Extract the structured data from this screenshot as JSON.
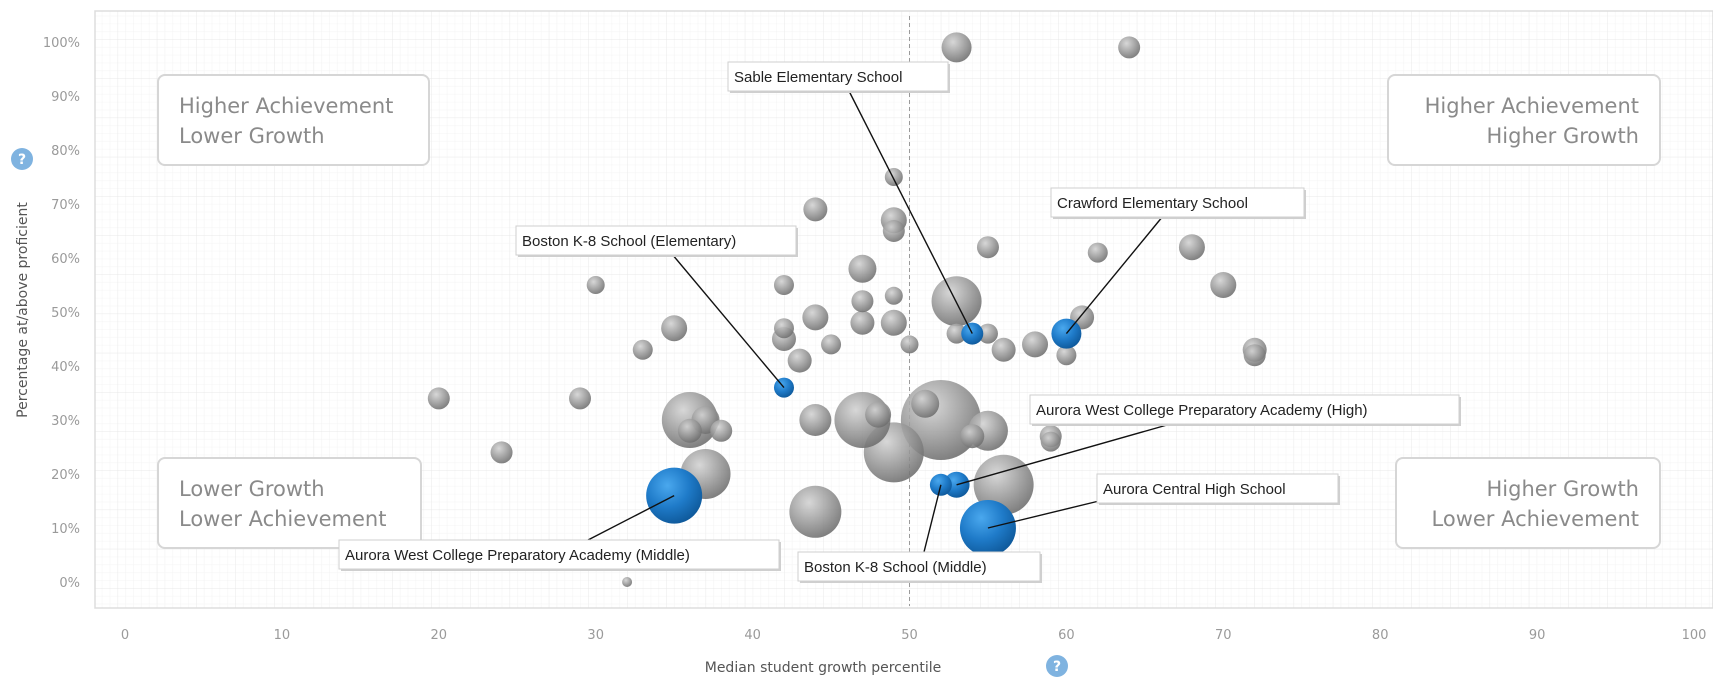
{
  "chart_data": {
    "type": "scatter",
    "title": "",
    "xlabel": "Median student growth percentile",
    "ylabel": "Percentage at/above proficient",
    "xlim": [
      0,
      100
    ],
    "ylim": [
      0,
      100
    ],
    "x_ticks": [
      0,
      10,
      20,
      30,
      40,
      50,
      60,
      70,
      80,
      90,
      100
    ],
    "y_ticks": [
      0,
      10,
      20,
      30,
      40,
      50,
      60,
      70,
      80,
      90,
      100
    ],
    "x_tick_labels": [
      "0",
      "10",
      "20",
      "30",
      "40",
      "50",
      "60",
      "70",
      "80",
      "90",
      "100"
    ],
    "y_tick_labels": [
      "0%",
      "10%",
      "20%",
      "30%",
      "40%",
      "50%",
      "60%",
      "70%",
      "80%",
      "90%",
      "100%"
    ],
    "reference_line_x": 50,
    "grid": true,
    "size_encoding": "bubble area",
    "colors": {
      "other_schools": "#8c8c8c",
      "highlighted": "#1f7bc9",
      "help_icon": "#7fb3e0",
      "panel_border": "#dddddd"
    },
    "quadrants": [
      {
        "position": "top-left",
        "line1": "Higher Achievement",
        "line2": "Lower Growth"
      },
      {
        "position": "top-right",
        "line1": "Higher Achievement",
        "line2": "Higher Growth"
      },
      {
        "position": "bottom-left",
        "line1": "Lower Growth",
        "line2": "Lower Achievement"
      },
      {
        "position": "bottom-right",
        "line1": "Higher Growth",
        "line2": "Lower Achievement"
      }
    ],
    "highlighted": [
      {
        "name": "Sable Elementary School",
        "x": 54,
        "y": 46,
        "size": 11
      },
      {
        "name": "Crawford Elementary School",
        "x": 60,
        "y": 46,
        "size": 15
      },
      {
        "name": "Boston K-8 School (Elementary)",
        "x": 42,
        "y": 36,
        "size": 10
      },
      {
        "name": "Aurora West College Preparatory Academy (High)",
        "x": 53,
        "y": 18,
        "size": 13
      },
      {
        "name": "Aurora Central High School",
        "x": 55,
        "y": 10,
        "size": 28
      },
      {
        "name": "Aurora West College Preparatory Academy (Middle)",
        "x": 35,
        "y": 16,
        "size": 28
      },
      {
        "name": "Boston K-8 School (Middle)",
        "x": 52,
        "y": 18,
        "size": 11
      }
    ],
    "other_schools": [
      {
        "x": 53,
        "y": 99,
        "size": 15
      },
      {
        "x": 64,
        "y": 99,
        "size": 11
      },
      {
        "x": 44,
        "y": 69,
        "size": 12
      },
      {
        "x": 49,
        "y": 75,
        "size": 9
      },
      {
        "x": 49,
        "y": 67,
        "size": 13
      },
      {
        "x": 49,
        "y": 65,
        "size": 11
      },
      {
        "x": 47,
        "y": 58,
        "size": 14
      },
      {
        "x": 55,
        "y": 62,
        "size": 11
      },
      {
        "x": 62,
        "y": 61,
        "size": 10
      },
      {
        "x": 68,
        "y": 62,
        "size": 13
      },
      {
        "x": 70,
        "y": 55,
        "size": 13
      },
      {
        "x": 42,
        "y": 55,
        "size": 10
      },
      {
        "x": 30,
        "y": 55,
        "size": 9
      },
      {
        "x": 47,
        "y": 52,
        "size": 11
      },
      {
        "x": 49,
        "y": 53,
        "size": 9
      },
      {
        "x": 53,
        "y": 52,
        "size": 25
      },
      {
        "x": 61,
        "y": 49,
        "size": 12
      },
      {
        "x": 44,
        "y": 49,
        "size": 13
      },
      {
        "x": 42,
        "y": 47,
        "size": 10
      },
      {
        "x": 35,
        "y": 47,
        "size": 13
      },
      {
        "x": 47,
        "y": 48,
        "size": 12
      },
      {
        "x": 49,
        "y": 48,
        "size": 13
      },
      {
        "x": 42,
        "y": 45,
        "size": 12
      },
      {
        "x": 45,
        "y": 44,
        "size": 10
      },
      {
        "x": 50,
        "y": 44,
        "size": 9
      },
      {
        "x": 53,
        "y": 46,
        "size": 10
      },
      {
        "x": 55,
        "y": 46,
        "size": 10
      },
      {
        "x": 56,
        "y": 43,
        "size": 12
      },
      {
        "x": 58,
        "y": 44,
        "size": 13
      },
      {
        "x": 60,
        "y": 42,
        "size": 10
      },
      {
        "x": 72,
        "y": 43,
        "size": 12
      },
      {
        "x": 72,
        "y": 42,
        "size": 11
      },
      {
        "x": 43,
        "y": 41,
        "size": 12
      },
      {
        "x": 33,
        "y": 43,
        "size": 10
      },
      {
        "x": 20,
        "y": 34,
        "size": 11
      },
      {
        "x": 29,
        "y": 34,
        "size": 11
      },
      {
        "x": 36,
        "y": 30,
        "size": 28
      },
      {
        "x": 37,
        "y": 30,
        "size": 14
      },
      {
        "x": 38,
        "y": 28,
        "size": 11
      },
      {
        "x": 36,
        "y": 28,
        "size": 12
      },
      {
        "x": 37,
        "y": 20,
        "size": 25
      },
      {
        "x": 24,
        "y": 24,
        "size": 11
      },
      {
        "x": 44,
        "y": 30,
        "size": 16
      },
      {
        "x": 47,
        "y": 30,
        "size": 28
      },
      {
        "x": 48,
        "y": 31,
        "size": 13
      },
      {
        "x": 49,
        "y": 24,
        "size": 30
      },
      {
        "x": 52,
        "y": 30,
        "size": 40
      },
      {
        "x": 51,
        "y": 33,
        "size": 14
      },
      {
        "x": 55,
        "y": 28,
        "size": 20
      },
      {
        "x": 54,
        "y": 27,
        "size": 12
      },
      {
        "x": 56,
        "y": 18,
        "size": 30
      },
      {
        "x": 59,
        "y": 27,
        "size": 11
      },
      {
        "x": 59,
        "y": 26,
        "size": 10
      },
      {
        "x": 44,
        "y": 13,
        "size": 26
      },
      {
        "x": 32,
        "y": 0,
        "size": 5
      }
    ]
  },
  "help_icon_glyph": "?"
}
